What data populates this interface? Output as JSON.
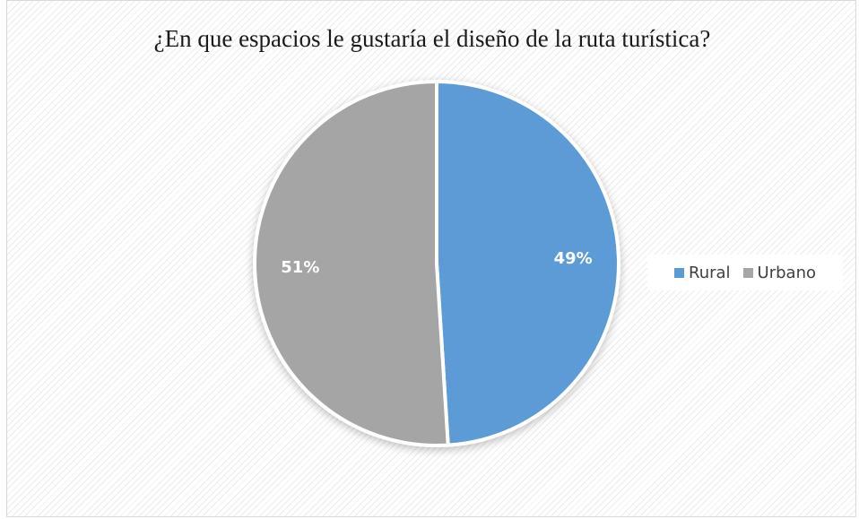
{
  "chart_data": {
    "type": "pie",
    "title": "¿En que espacios le gustaría el diseño de la ruta turística?",
    "categories": [
      "Rural",
      "Urbano"
    ],
    "values": [
      49,
      51
    ],
    "labels": [
      "49%",
      "51%"
    ],
    "colors": [
      "#5b9bd5",
      "#a5a5a5"
    ],
    "legend": "right"
  }
}
